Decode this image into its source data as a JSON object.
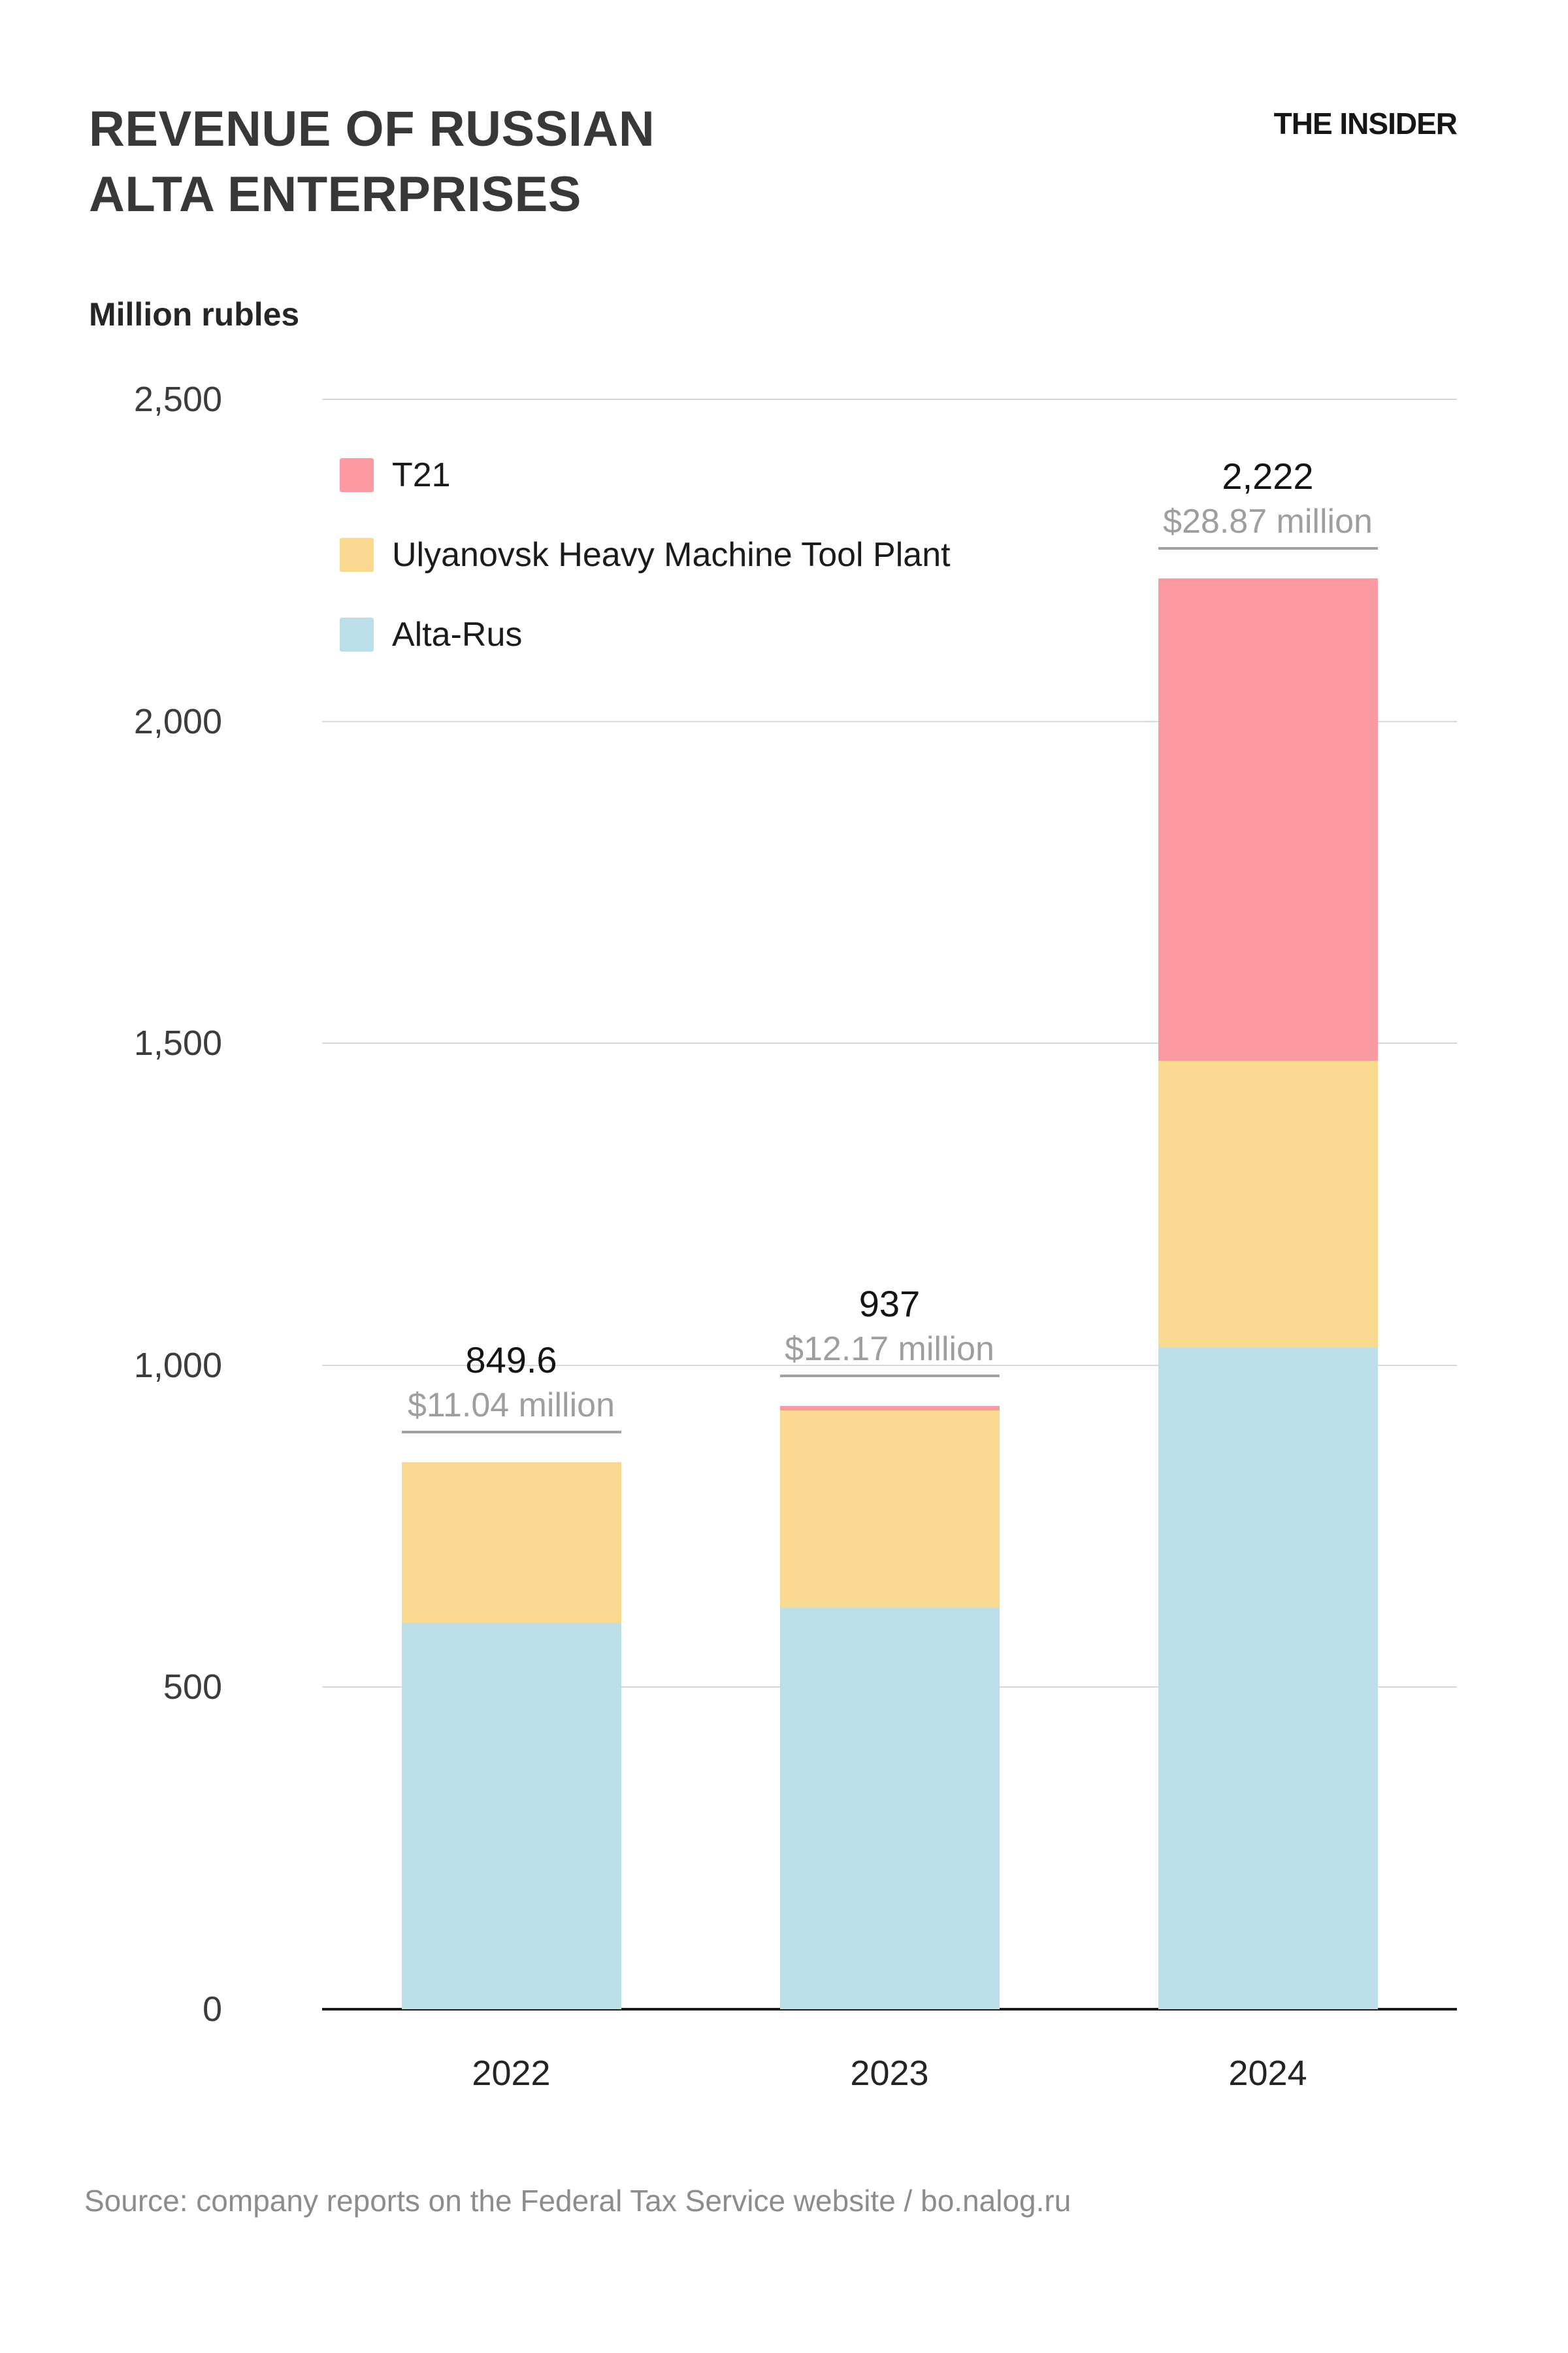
{
  "header": {
    "title_line1": "REVENUE OF RUSSIAN",
    "title_line2": "ALTA ENTERPRISES",
    "brand": "THE INSIDER",
    "units_label": "Million rubles"
  },
  "legend": [
    {
      "label": "T21",
      "color": "#FB9BA1"
    },
    {
      "label": "Ulyanovsk Heavy Machine Tool Plant",
      "color": "#F9D98F"
    },
    {
      "label": "Alta-Rus",
      "color": "#BCDEE8"
    }
  ],
  "footer": {
    "source": "Source: company reports on the Federal Tax Service website / bo.nalog.ru"
  },
  "chart_data": {
    "type": "bar",
    "stacked": true,
    "title": "Revenue of Russian Alta enterprises",
    "ylabel": "Million rubles",
    "categories": [
      "2022",
      "2023",
      "2024"
    ],
    "series": [
      {
        "name": "Alta-Rus",
        "color": "#BCDEE8",
        "values": [
          600,
          623,
          1027
        ]
      },
      {
        "name": "Ulyanovsk Heavy Machine Tool Plant",
        "color": "#F9D98F",
        "values": [
          249.6,
          307,
          446
        ]
      },
      {
        "name": "T21",
        "color": "#FB9BA1",
        "values": [
          0,
          7,
          749
        ]
      }
    ],
    "totals": [
      849.6,
      937,
      2222
    ],
    "total_labels": [
      "849.6",
      "937",
      "2,222"
    ],
    "usd_labels": [
      "$11.04 million",
      "$12.17 million",
      "$28.87 million"
    ],
    "y_ticks": [
      0,
      500,
      1000,
      1500,
      2000,
      2500
    ],
    "y_tick_labels": [
      "0",
      "500",
      "1,000",
      "1,500",
      "2,000",
      "2,500"
    ],
    "ylim": [
      0,
      2500
    ],
    "grid": true,
    "legend_position": "top-left"
  }
}
